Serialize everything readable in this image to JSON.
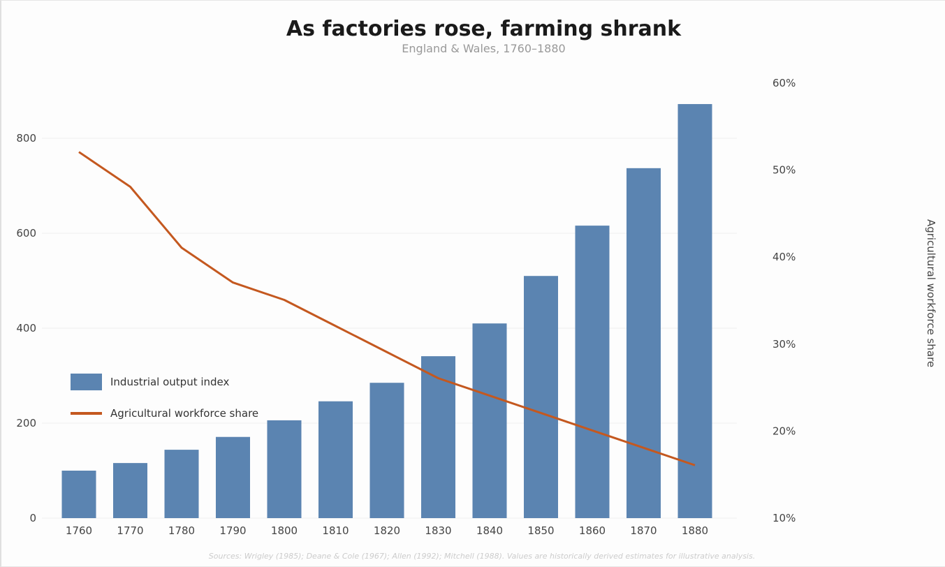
{
  "chart_data": {
    "type": "bar+line",
    "title": "As factories rose, farming shrank",
    "subtitle": "England & Wales, 1760–1880",
    "categories": [
      "1760",
      "1770",
      "1780",
      "1790",
      "1800",
      "1810",
      "1820",
      "1830",
      "1840",
      "1850",
      "1860",
      "1870",
      "1880"
    ],
    "series": [
      {
        "name": "Industrial output index",
        "type": "bar",
        "axis": "left",
        "color": "#5b84b1",
        "values": [
          100,
          116,
          144,
          171,
          206,
          246,
          285,
          341,
          410,
          510,
          616,
          737,
          872
        ]
      },
      {
        "name": "Agricultural workforce share",
        "type": "line",
        "axis": "right",
        "color": "#c4581f",
        "values": [
          52,
          48,
          41,
          37,
          35,
          32,
          29,
          26,
          24,
          22,
          20,
          18,
          16
        ]
      }
    ],
    "left_axis": {
      "label": "",
      "ylim": [
        0,
        900
      ],
      "ticks": [
        "0",
        "200",
        "400",
        "600",
        "800"
      ]
    },
    "right_axis": {
      "label": "Agricultural workforce share",
      "ylim": [
        10,
        60
      ],
      "ticks": [
        "10%",
        "20%",
        "30%",
        "40%",
        "50%",
        "60%"
      ]
    },
    "grid": true,
    "legend": "center-left",
    "source": "Sources: Wrigley (1985); Deane & Cole (1967); Allen (1992); Mitchell (1988). Values are historically derived estimates for illustrative analysis."
  }
}
